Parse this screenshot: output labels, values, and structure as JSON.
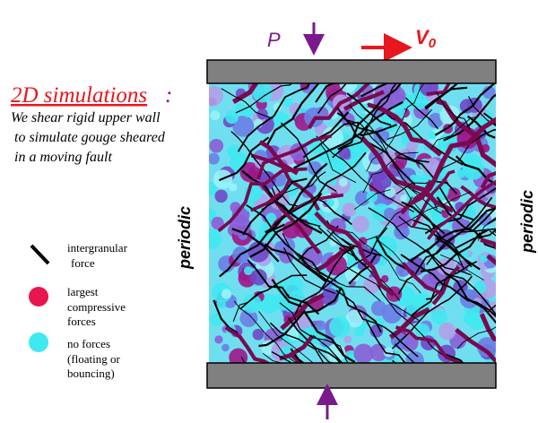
{
  "header": {
    "title": "2D simulations",
    "title_colon": ":",
    "description": [
      "We shear rigid upper wall",
      "to simulate gouge sheared",
      "in a moving fault"
    ]
  },
  "labels": {
    "pressure": "P",
    "velocity": "V",
    "velocity_subscript": "0",
    "periodic_left": "periodic",
    "periodic_right": "periodic"
  },
  "legend": [
    {
      "lines": [
        "intergranular",
        "force"
      ]
    },
    {
      "lines": [
        "largest",
        "compressive",
        "forces"
      ]
    },
    {
      "lines": [
        "no forces",
        "(floating or",
        "bouncing)"
      ]
    }
  ]
}
